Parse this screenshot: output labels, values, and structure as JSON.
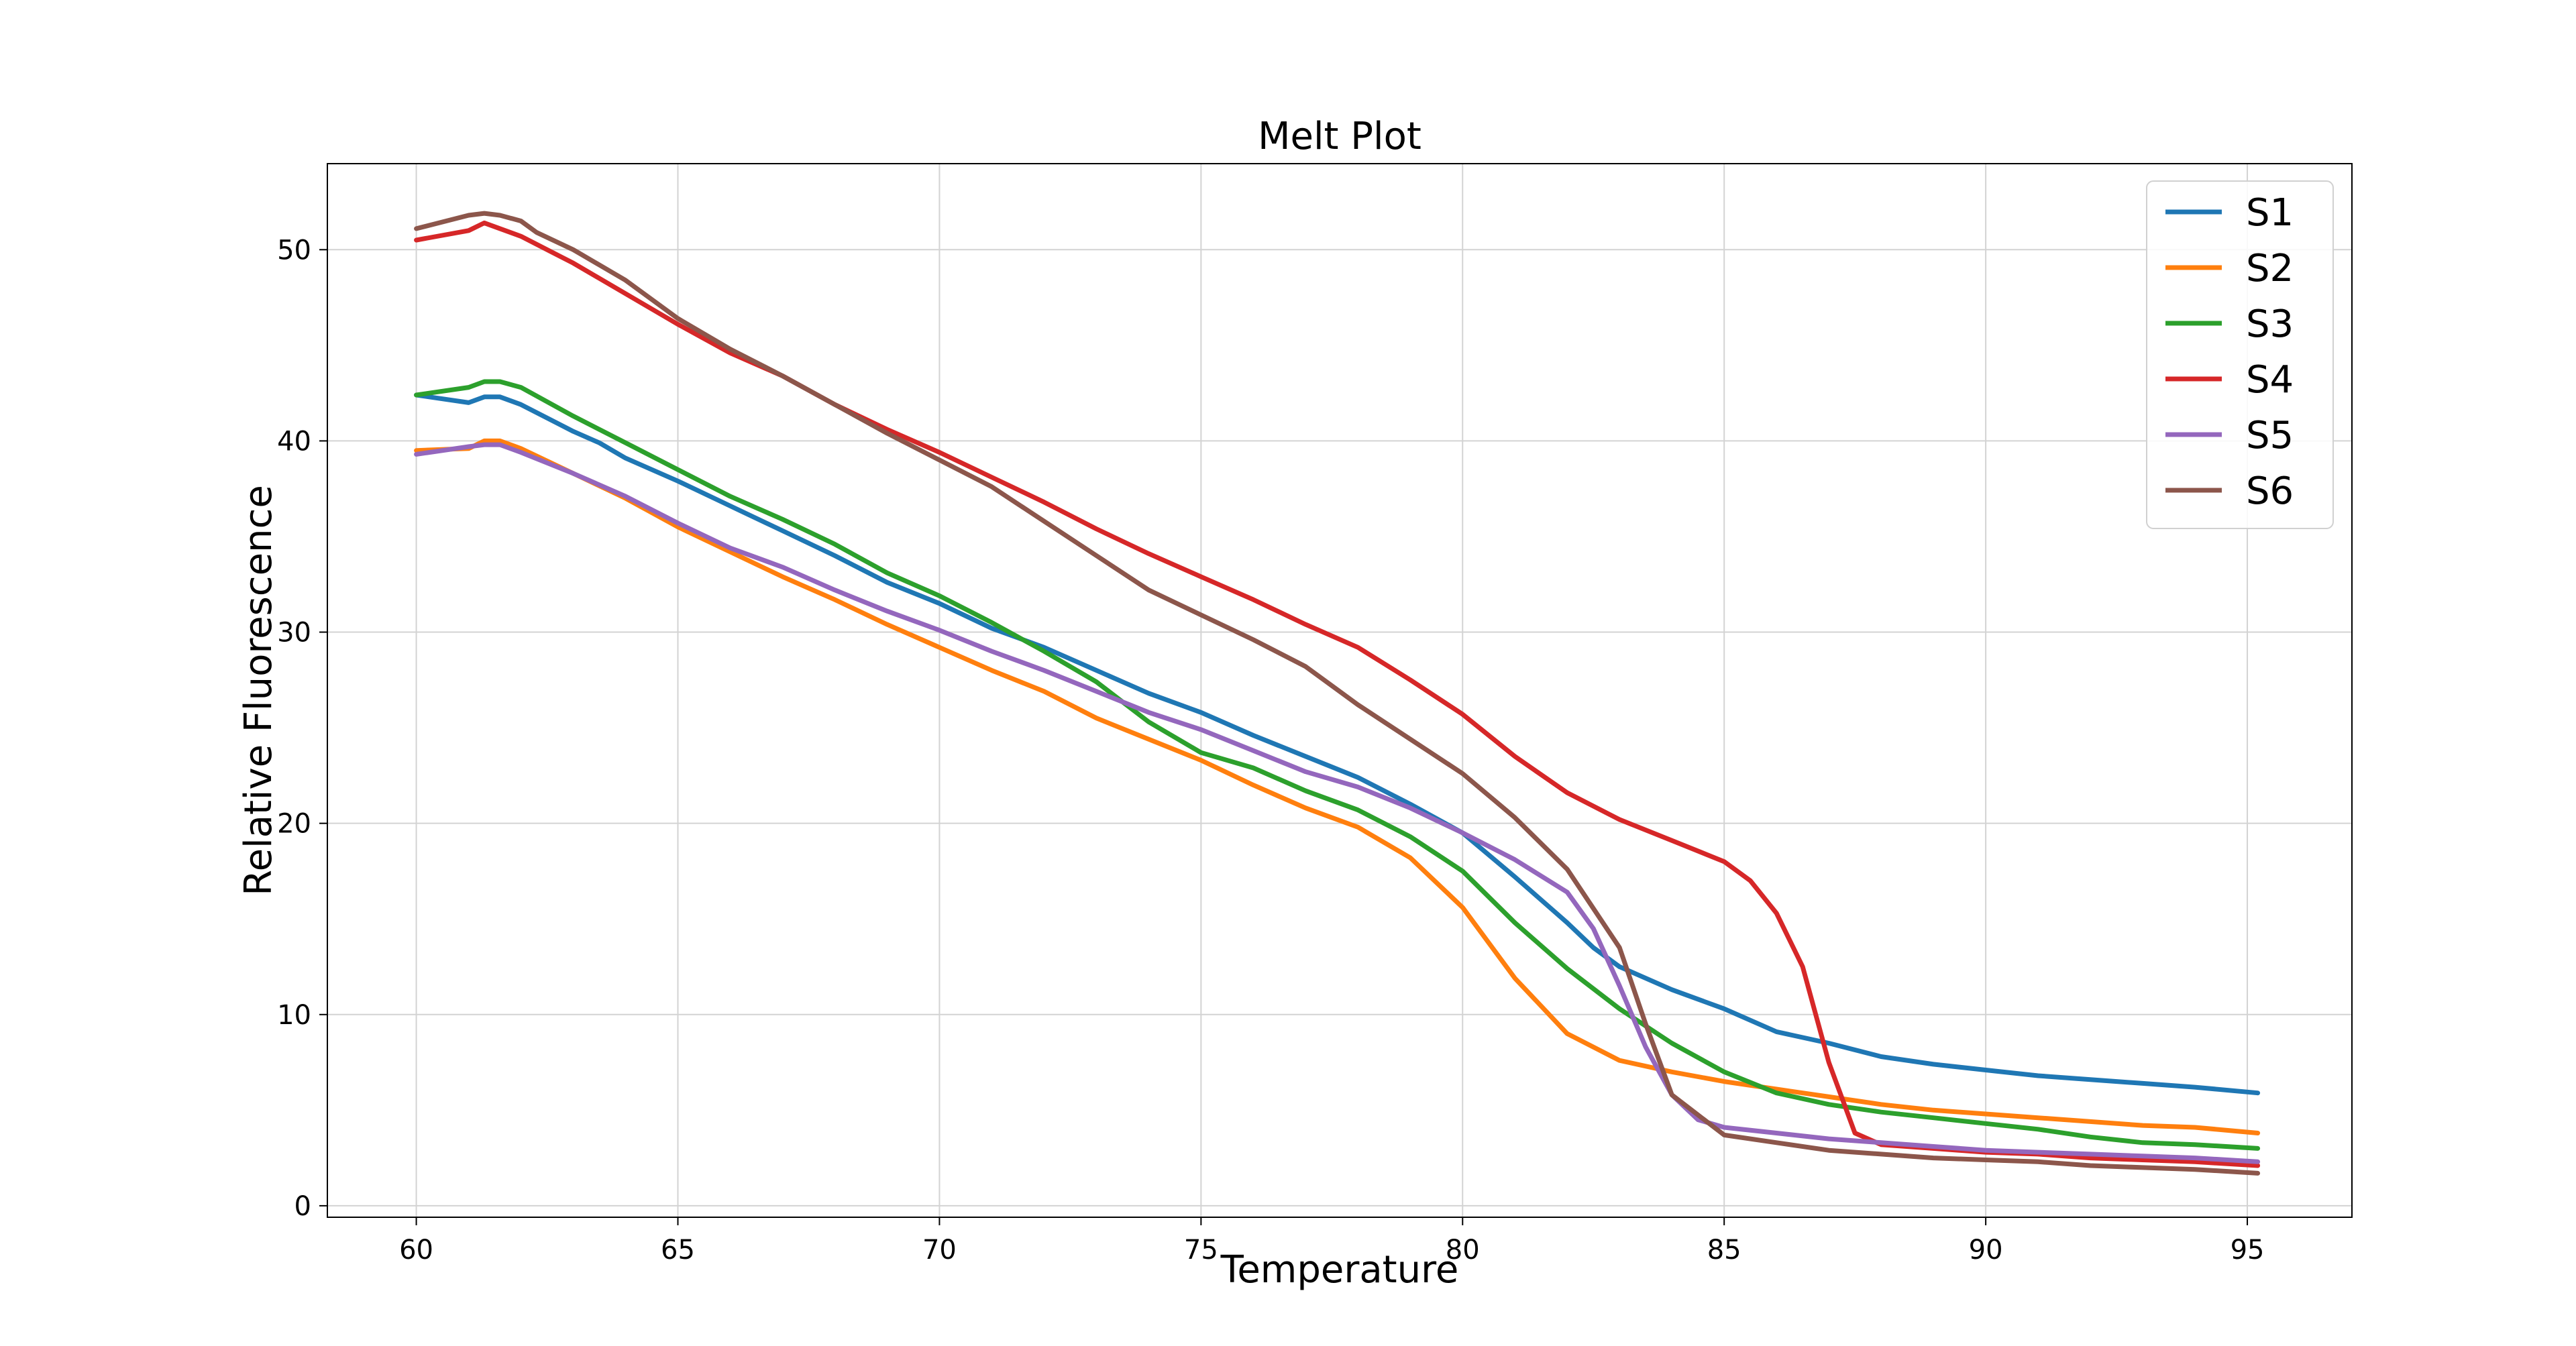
{
  "chart_data": {
    "type": "line",
    "title": "Melt Plot",
    "xlabel": "Temperature",
    "ylabel": "Relative Fluorescence",
    "xlim": [
      58.3,
      97.0
    ],
    "ylim": [
      -0.6,
      54.5
    ],
    "xticks": [
      60,
      65,
      70,
      75,
      80,
      85,
      90,
      95
    ],
    "yticks": [
      0,
      10,
      20,
      30,
      40,
      50
    ],
    "grid": true,
    "legend": "top-right",
    "series": [
      {
        "name": "S1",
        "color": "#1f77b4",
        "points": [
          [
            60,
            42.4
          ],
          [
            61,
            42.0
          ],
          [
            61.3,
            42.3
          ],
          [
            61.6,
            42.3
          ],
          [
            62,
            41.9
          ],
          [
            63,
            40.5
          ],
          [
            63.5,
            39.9
          ],
          [
            64,
            39.1
          ],
          [
            65,
            37.9
          ],
          [
            66,
            36.6
          ],
          [
            67,
            35.3
          ],
          [
            68,
            34.0
          ],
          [
            69,
            32.6
          ],
          [
            70,
            31.5
          ],
          [
            71,
            30.2
          ],
          [
            72,
            29.2
          ],
          [
            73,
            28.0
          ],
          [
            74,
            26.8
          ],
          [
            75,
            25.8
          ],
          [
            76,
            24.6
          ],
          [
            77,
            23.5
          ],
          [
            78,
            22.4
          ],
          [
            79,
            21.0
          ],
          [
            80,
            19.5
          ],
          [
            81,
            17.2
          ],
          [
            82,
            14.8
          ],
          [
            82.5,
            13.5
          ],
          [
            83,
            12.5
          ],
          [
            84,
            11.3
          ],
          [
            85,
            10.3
          ],
          [
            86,
            9.1
          ],
          [
            87,
            8.5
          ],
          [
            88,
            7.8
          ],
          [
            89,
            7.4
          ],
          [
            90,
            7.1
          ],
          [
            91,
            6.8
          ],
          [
            92,
            6.6
          ],
          [
            93,
            6.4
          ],
          [
            94,
            6.2
          ],
          [
            95.2,
            5.9
          ]
        ]
      },
      {
        "name": "S2",
        "color": "#ff7f0e",
        "points": [
          [
            60,
            39.5
          ],
          [
            61,
            39.6
          ],
          [
            61.3,
            40.0
          ],
          [
            61.6,
            40.0
          ],
          [
            62,
            39.6
          ],
          [
            63,
            38.3
          ],
          [
            64,
            37.0
          ],
          [
            65,
            35.5
          ],
          [
            66,
            34.2
          ],
          [
            67,
            32.9
          ],
          [
            68,
            31.7
          ],
          [
            69,
            30.4
          ],
          [
            70,
            29.2
          ],
          [
            71,
            28.0
          ],
          [
            72,
            26.9
          ],
          [
            73,
            25.5
          ],
          [
            74,
            24.4
          ],
          [
            75,
            23.3
          ],
          [
            76,
            22.0
          ],
          [
            77,
            20.8
          ],
          [
            78,
            19.8
          ],
          [
            79,
            18.2
          ],
          [
            80,
            15.6
          ],
          [
            81,
            11.9
          ],
          [
            82,
            9.0
          ],
          [
            83,
            7.6
          ],
          [
            84,
            7.0
          ],
          [
            85,
            6.5
          ],
          [
            86,
            6.1
          ],
          [
            87,
            5.7
          ],
          [
            88,
            5.3
          ],
          [
            89,
            5.0
          ],
          [
            90,
            4.8
          ],
          [
            91,
            4.6
          ],
          [
            92,
            4.4
          ],
          [
            93,
            4.2
          ],
          [
            94,
            4.1
          ],
          [
            95.2,
            3.8
          ]
        ]
      },
      {
        "name": "S3",
        "color": "#2ca02c",
        "points": [
          [
            60,
            42.4
          ],
          [
            61,
            42.8
          ],
          [
            61.3,
            43.1
          ],
          [
            61.6,
            43.1
          ],
          [
            62,
            42.8
          ],
          [
            63,
            41.3
          ],
          [
            64,
            39.9
          ],
          [
            65,
            38.5
          ],
          [
            66,
            37.1
          ],
          [
            67,
            35.9
          ],
          [
            68,
            34.6
          ],
          [
            69,
            33.1
          ],
          [
            70,
            31.9
          ],
          [
            71,
            30.5
          ],
          [
            72,
            29.0
          ],
          [
            73,
            27.4
          ],
          [
            74,
            25.3
          ],
          [
            75,
            23.7
          ],
          [
            76,
            22.9
          ],
          [
            77,
            21.7
          ],
          [
            78,
            20.7
          ],
          [
            79,
            19.3
          ],
          [
            80,
            17.5
          ],
          [
            81,
            14.8
          ],
          [
            82,
            12.4
          ],
          [
            83,
            10.3
          ],
          [
            84,
            8.5
          ],
          [
            85,
            7.0
          ],
          [
            86,
            5.9
          ],
          [
            87,
            5.3
          ],
          [
            88,
            4.9
          ],
          [
            89,
            4.6
          ],
          [
            90,
            4.3
          ],
          [
            91,
            4.0
          ],
          [
            92,
            3.6
          ],
          [
            93,
            3.3
          ],
          [
            94,
            3.2
          ],
          [
            95.2,
            3.0
          ]
        ]
      },
      {
        "name": "S4",
        "color": "#d62728",
        "points": [
          [
            60,
            50.5
          ],
          [
            61,
            51.0
          ],
          [
            61.3,
            51.4
          ],
          [
            61.6,
            51.1
          ],
          [
            62,
            50.7
          ],
          [
            63,
            49.3
          ],
          [
            64,
            47.7
          ],
          [
            65,
            46.1
          ],
          [
            66,
            44.6
          ],
          [
            67,
            43.4
          ],
          [
            68,
            41.9
          ],
          [
            69,
            40.6
          ],
          [
            70,
            39.4
          ],
          [
            71,
            38.1
          ],
          [
            72,
            36.8
          ],
          [
            73,
            35.4
          ],
          [
            74,
            34.1
          ],
          [
            75,
            32.9
          ],
          [
            76,
            31.7
          ],
          [
            77,
            30.4
          ],
          [
            78,
            29.2
          ],
          [
            79,
            27.5
          ],
          [
            80,
            25.7
          ],
          [
            81,
            23.5
          ],
          [
            82,
            21.6
          ],
          [
            83,
            20.2
          ],
          [
            84,
            19.1
          ],
          [
            85,
            18.0
          ],
          [
            85.5,
            17.0
          ],
          [
            86,
            15.3
          ],
          [
            86.5,
            12.5
          ],
          [
            87,
            7.5
          ],
          [
            87.5,
            3.8
          ],
          [
            88,
            3.2
          ],
          [
            89,
            3.0
          ],
          [
            90,
            2.8
          ],
          [
            91,
            2.7
          ],
          [
            92,
            2.5
          ],
          [
            93,
            2.4
          ],
          [
            94,
            2.3
          ],
          [
            95.2,
            2.1
          ]
        ]
      },
      {
        "name": "S5",
        "color": "#9467bd",
        "points": [
          [
            60,
            39.3
          ],
          [
            61,
            39.7
          ],
          [
            61.3,
            39.8
          ],
          [
            61.6,
            39.8
          ],
          [
            62,
            39.4
          ],
          [
            63,
            38.3
          ],
          [
            64,
            37.1
          ],
          [
            65,
            35.7
          ],
          [
            66,
            34.4
          ],
          [
            67,
            33.4
          ],
          [
            68,
            32.2
          ],
          [
            69,
            31.1
          ],
          [
            70,
            30.1
          ],
          [
            71,
            29.0
          ],
          [
            72,
            28.0
          ],
          [
            73,
            26.9
          ],
          [
            74,
            25.8
          ],
          [
            75,
            24.9
          ],
          [
            76,
            23.8
          ],
          [
            77,
            22.7
          ],
          [
            78,
            21.9
          ],
          [
            79,
            20.8
          ],
          [
            80,
            19.5
          ],
          [
            81,
            18.1
          ],
          [
            82,
            16.4
          ],
          [
            82.5,
            14.5
          ],
          [
            83,
            11.5
          ],
          [
            83.5,
            8.3
          ],
          [
            84,
            5.8
          ],
          [
            84.5,
            4.5
          ],
          [
            85,
            4.1
          ],
          [
            86,
            3.8
          ],
          [
            87,
            3.5
          ],
          [
            88,
            3.3
          ],
          [
            89,
            3.1
          ],
          [
            90,
            2.9
          ],
          [
            91,
            2.8
          ],
          [
            92,
            2.7
          ],
          [
            93,
            2.6
          ],
          [
            94,
            2.5
          ],
          [
            95.2,
            2.3
          ]
        ]
      },
      {
        "name": "S6",
        "color": "#8c564b",
        "points": [
          [
            60,
            51.1
          ],
          [
            61,
            51.8
          ],
          [
            61.3,
            51.9
          ],
          [
            61.6,
            51.8
          ],
          [
            62,
            51.5
          ],
          [
            62.3,
            50.9
          ],
          [
            63,
            50.0
          ],
          [
            64,
            48.4
          ],
          [
            65,
            46.4
          ],
          [
            66,
            44.8
          ],
          [
            67,
            43.4
          ],
          [
            68,
            41.9
          ],
          [
            69,
            40.4
          ],
          [
            70,
            39.0
          ],
          [
            71,
            37.6
          ],
          [
            72,
            35.8
          ],
          [
            73,
            34.0
          ],
          [
            74,
            32.2
          ],
          [
            75,
            30.9
          ],
          [
            76,
            29.6
          ],
          [
            77,
            28.2
          ],
          [
            78,
            26.2
          ],
          [
            79,
            24.4
          ],
          [
            80,
            22.6
          ],
          [
            81,
            20.3
          ],
          [
            82,
            17.6
          ],
          [
            83,
            13.5
          ],
          [
            83.5,
            9.5
          ],
          [
            84,
            5.8
          ],
          [
            85,
            3.7
          ],
          [
            86,
            3.3
          ],
          [
            87,
            2.9
          ],
          [
            88,
            2.7
          ],
          [
            89,
            2.5
          ],
          [
            90,
            2.4
          ],
          [
            91,
            2.3
          ],
          [
            92,
            2.1
          ],
          [
            93,
            2.0
          ],
          [
            94,
            1.9
          ],
          [
            95.2,
            1.7
          ]
        ]
      }
    ]
  }
}
